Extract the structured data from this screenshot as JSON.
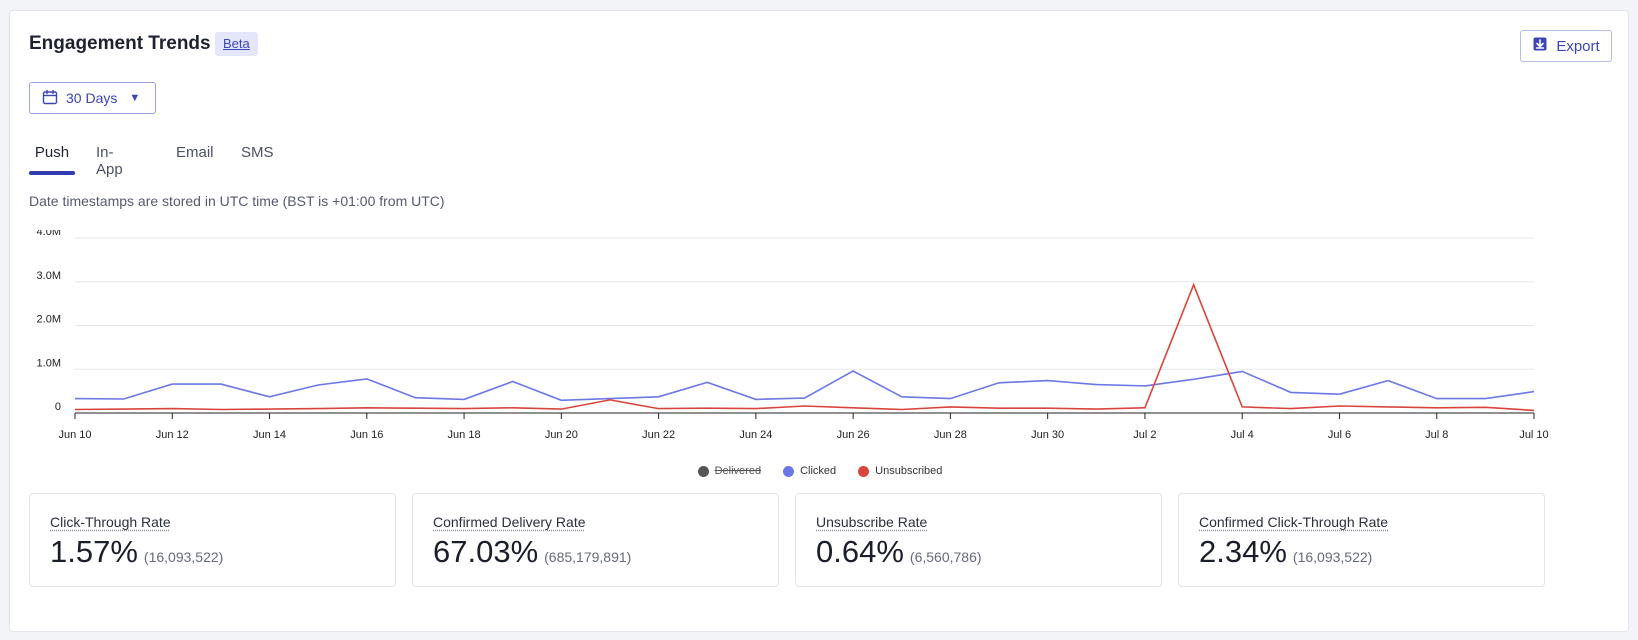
{
  "header": {
    "title": "Engagement Trends",
    "badge": "Beta",
    "export_label": "Export"
  },
  "filters": {
    "date_range": "30 Days"
  },
  "tabs": [
    {
      "label": "Push",
      "active": true
    },
    {
      "label": "In-App",
      "active": false
    },
    {
      "label": "Email",
      "active": false
    },
    {
      "label": "SMS",
      "active": false
    }
  ],
  "note": "Date timestamps are stored in UTC time (BST is +01:00 from UTC)",
  "legend": [
    {
      "label": "Delivered",
      "color": "#555555",
      "hidden": true
    },
    {
      "label": "Clicked",
      "color": "#6b78e5",
      "hidden": false
    },
    {
      "label": "Unsubscribed",
      "color": "#d9453d",
      "hidden": false
    }
  ],
  "chart_data": {
    "type": "line",
    "x": [
      "Jun 10",
      "Jun 11",
      "Jun 12",
      "Jun 13",
      "Jun 14",
      "Jun 15",
      "Jun 16",
      "Jun 17",
      "Jun 18",
      "Jun 19",
      "Jun 20",
      "Jun 21",
      "Jun 22",
      "Jun 23",
      "Jun 24",
      "Jun 25",
      "Jun 26",
      "Jun 27",
      "Jun 28",
      "Jun 29",
      "Jun 30",
      "Jul 1",
      "Jul 2",
      "Jul 3",
      "Jul 4",
      "Jul 5",
      "Jul 6",
      "Jul 7",
      "Jul 8",
      "Jul 9",
      "Jul 10"
    ],
    "x_tick_labels": [
      "Jun 10",
      "Jun 12",
      "Jun 14",
      "Jun 16",
      "Jun 18",
      "Jun 20",
      "Jun 22",
      "Jun 24",
      "Jun 26",
      "Jun 28",
      "Jun 30",
      "Jul 2",
      "Jul 4",
      "Jul 6",
      "Jul 8",
      "Jul 10"
    ],
    "y_tick_labels": [
      "0",
      "1.0M",
      "2.0M",
      "3.0M",
      "4.0M"
    ],
    "ylim": [
      0,
      4000000
    ],
    "grid": true,
    "legend_position": "bottom-center",
    "series": [
      {
        "name": "Clicked",
        "color": "#6b78e5",
        "values": [
          330000,
          320000,
          660000,
          660000,
          370000,
          640000,
          780000,
          350000,
          310000,
          720000,
          290000,
          330000,
          370000,
          700000,
          310000,
          340000,
          960000,
          370000,
          330000,
          690000,
          740000,
          650000,
          620000,
          770000,
          950000,
          470000,
          430000,
          740000,
          330000,
          330000,
          490000
        ]
      },
      {
        "name": "Unsubscribed",
        "color": "#d9453d",
        "values": [
          80000,
          90000,
          100000,
          80000,
          90000,
          100000,
          120000,
          110000,
          100000,
          120000,
          90000,
          300000,
          100000,
          110000,
          100000,
          160000,
          120000,
          80000,
          140000,
          110000,
          110000,
          90000,
          120000,
          2930000,
          140000,
          100000,
          160000,
          140000,
          120000,
          130000,
          60000
        ]
      }
    ]
  },
  "metrics": [
    {
      "label": "Click-Through Rate",
      "value": "1.57%",
      "sub": "(16,093,522)"
    },
    {
      "label": "Confirmed Delivery Rate",
      "value": "67.03%",
      "sub": "(685,179,891)"
    },
    {
      "label": "Unsubscribe Rate",
      "value": "0.64%",
      "sub": "(6,560,786)"
    },
    {
      "label": "Confirmed Click-Through Rate",
      "value": "2.34%",
      "sub": "(16,093,522)"
    }
  ]
}
